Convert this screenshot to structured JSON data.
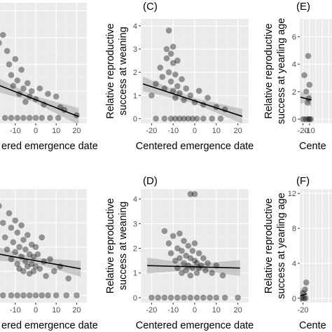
{
  "colors": {
    "panel_background": "#ebebeb",
    "grid_major": "#ffffff",
    "grid_minor": "#f3f3f3",
    "point_fill": "#000000",
    "regression_line": "#000000",
    "confidence_band": "#999999"
  },
  "chart_data": [
    {
      "type": "scatter",
      "panel_label": "",
      "xlabel": "Centered emergence date",
      "ylabel": "",
      "xlim": [
        -25,
        25
      ],
      "ylim": [
        -0.2,
        4.3
      ],
      "x_ticks": [],
      "y_ticks": [],
      "visible_x_tick_labels": [
        "-10",
        "0",
        "10",
        "20"
      ],
      "visible_xlabel_text": "ered emergence date",
      "points": [
        {
          "x": -18,
          "y": 2.8
        },
        {
          "x": -16,
          "y": 3.1
        },
        {
          "x": -14,
          "y": 2.5
        },
        {
          "x": -13,
          "y": 2.0
        },
        {
          "x": -12,
          "y": 1.6
        },
        {
          "x": -11,
          "y": 1.2
        },
        {
          "x": -10,
          "y": 2.2
        },
        {
          "x": -9,
          "y": 1.4
        },
        {
          "x": -8,
          "y": 0.9
        },
        {
          "x": -7,
          "y": 1.8
        },
        {
          "x": -6,
          "y": 1.1
        },
        {
          "x": -5,
          "y": 0.6
        },
        {
          "x": -4,
          "y": 1.3
        },
        {
          "x": -3,
          "y": 0.8
        },
        {
          "x": -2,
          "y": 1.0
        },
        {
          "x": 0,
          "y": 0.7
        },
        {
          "x": 2,
          "y": 1.1
        },
        {
          "x": 4,
          "y": 0.5
        },
        {
          "x": 6,
          "y": 0.9
        },
        {
          "x": 10,
          "y": 0.8
        },
        {
          "x": 12,
          "y": 0.4
        },
        {
          "x": 14,
          "y": 0.3
        },
        {
          "x": 20,
          "y": 0.1
        },
        {
          "x": -15,
          "y": 0
        },
        {
          "x": -12,
          "y": 0
        },
        {
          "x": -9,
          "y": 0
        },
        {
          "x": -6,
          "y": 0
        },
        {
          "x": -3,
          "y": 0
        },
        {
          "x": 0,
          "y": 0
        },
        {
          "x": 3,
          "y": 0
        },
        {
          "x": 7,
          "y": 0
        },
        {
          "x": 11,
          "y": 0
        }
      ],
      "fit": {
        "x": [
          -24,
          21
        ],
        "y": [
          1.4,
          0.05
        ]
      }
    },
    {
      "type": "scatter",
      "panel_label": "(C)",
      "xlabel": "Centered emergence date",
      "ylabel": "Relative reproductive success at weaning",
      "ylabel_lines": [
        "Relative reproductive",
        "success at weaning"
      ],
      "xlim": [
        -25,
        25
      ],
      "ylim": [
        -0.2,
        4.3
      ],
      "x_ticks": [
        -20,
        -10,
        0,
        10,
        20
      ],
      "y_ticks": [
        0,
        1,
        2,
        3,
        4
      ],
      "x_tick_labels": [
        "-20",
        "-10",
        "0",
        "10",
        "20"
      ],
      "y_tick_labels": [
        "0",
        "1",
        "2",
        "3",
        "4"
      ],
      "points": [
        {
          "x": -20,
          "y": 1.0
        },
        {
          "x": -18,
          "y": 1.5
        },
        {
          "x": -16,
          "y": 2.2
        },
        {
          "x": -15,
          "y": 1.8
        },
        {
          "x": -14,
          "y": 1.3
        },
        {
          "x": -13,
          "y": 3.0
        },
        {
          "x": -13,
          "y": 2.6
        },
        {
          "x": -12,
          "y": 3.8
        },
        {
          "x": -12,
          "y": 2.0
        },
        {
          "x": -11,
          "y": 2.8
        },
        {
          "x": -11,
          "y": 1.6
        },
        {
          "x": -10,
          "y": 3.1
        },
        {
          "x": -10,
          "y": 2.4
        },
        {
          "x": -10,
          "y": 1.2
        },
        {
          "x": -9,
          "y": 1.9
        },
        {
          "x": -9,
          "y": 0.9
        },
        {
          "x": -8,
          "y": 2.5
        },
        {
          "x": -8,
          "y": 1.4
        },
        {
          "x": -7,
          "y": 1.1
        },
        {
          "x": -6,
          "y": 1.7
        },
        {
          "x": -5,
          "y": 0.8
        },
        {
          "x": -4,
          "y": 1.3
        },
        {
          "x": -2,
          "y": 1.0
        },
        {
          "x": 0,
          "y": 0.7
        },
        {
          "x": 2,
          "y": 1.2
        },
        {
          "x": 4,
          "y": 0.6
        },
        {
          "x": 6,
          "y": 0.9
        },
        {
          "x": 10,
          "y": 0.5
        },
        {
          "x": 14,
          "y": 0.4
        },
        {
          "x": -18,
          "y": 0
        },
        {
          "x": -14,
          "y": 0
        },
        {
          "x": -11,
          "y": 0
        },
        {
          "x": -9,
          "y": 0
        },
        {
          "x": -7,
          "y": 0
        },
        {
          "x": -5,
          "y": 0
        },
        {
          "x": -3,
          "y": 0
        },
        {
          "x": -1,
          "y": 0
        },
        {
          "x": 1,
          "y": 0
        },
        {
          "x": 4,
          "y": 0
        },
        {
          "x": 8,
          "y": 0
        },
        {
          "x": 12,
          "y": 0
        }
      ],
      "fit": {
        "x": [
          -24,
          22
        ],
        "y": [
          1.5,
          0.1
        ]
      }
    },
    {
      "type": "scatter",
      "panel_label": "(E)",
      "xlabel": "Centered emergence date",
      "ylabel": "Relative reproductive success at yearling age",
      "ylabel_lines": [
        "Relative reproductive",
        "success at yearling age"
      ],
      "xlim": [
        -25,
        25
      ],
      "ylim": [
        -0.3,
        7.3
      ],
      "x_ticks": [
        -20,
        -10
      ],
      "y_ticks": [
        0,
        2,
        4,
        6
      ],
      "x_tick_labels": [
        "-20",
        "-10"
      ],
      "y_tick_labels": [
        "0",
        "2",
        "4",
        "6"
      ],
      "visible_xlabel_text": "Cente",
      "points": [
        {
          "x": -18,
          "y": 3.2
        },
        {
          "x": -15,
          "y": 2.0
        },
        {
          "x": -13,
          "y": 1.2
        },
        {
          "x": -12,
          "y": 4.6
        },
        {
          "x": -11,
          "y": 1.5
        },
        {
          "x": -10,
          "y": 2.5
        },
        {
          "x": -20,
          "y": 0
        },
        {
          "x": -16,
          "y": 0
        },
        {
          "x": -12,
          "y": 0
        },
        {
          "x": -10,
          "y": 0
        },
        {
          "x": -8,
          "y": 0
        }
      ],
      "fit": {
        "x": [
          -24,
          -7
        ],
        "y": [
          1.6,
          1.4
        ]
      }
    },
    {
      "type": "scatter",
      "panel_label": "",
      "xlabel": "Centered emergence date",
      "ylabel": "",
      "xlim": [
        -25,
        25
      ],
      "ylim": [
        -0.3,
        4.4
      ],
      "x_ticks": [],
      "y_ticks": [],
      "visible_x_tick_labels": [
        "-10",
        "0",
        "10",
        "20"
      ],
      "visible_xlabel_text": "ered emergence date",
      "points": [
        {
          "x": -18,
          "y": 3.7
        },
        {
          "x": -16,
          "y": 3.0
        },
        {
          "x": -15,
          "y": 2.4
        },
        {
          "x": -14,
          "y": 1.9
        },
        {
          "x": -13,
          "y": 3.4
        },
        {
          "x": -12,
          "y": 2.8
        },
        {
          "x": -12,
          "y": 1.5
        },
        {
          "x": -11,
          "y": 2.2
        },
        {
          "x": -10,
          "y": 3.1
        },
        {
          "x": -10,
          "y": 1.8
        },
        {
          "x": -9,
          "y": 2.6
        },
        {
          "x": -9,
          "y": 1.3
        },
        {
          "x": -8,
          "y": 2.0
        },
        {
          "x": -8,
          "y": 1.1
        },
        {
          "x": -7,
          "y": 2.9
        },
        {
          "x": -7,
          "y": 1.6
        },
        {
          "x": -6,
          "y": 2.3
        },
        {
          "x": -6,
          "y": 1.0
        },
        {
          "x": -5,
          "y": 1.9
        },
        {
          "x": -5,
          "y": 1.4
        },
        {
          "x": -4,
          "y": 2.5
        },
        {
          "x": -4,
          "y": 1.2
        },
        {
          "x": -3,
          "y": 1.7
        },
        {
          "x": -3,
          "y": 0.9
        },
        {
          "x": -2,
          "y": 2.1
        },
        {
          "x": -2,
          "y": 1.3
        },
        {
          "x": -1,
          "y": 1.6
        },
        {
          "x": -1,
          "y": 1.0
        },
        {
          "x": 0,
          "y": 2.0
        },
        {
          "x": 0,
          "y": 1.2
        },
        {
          "x": 1,
          "y": 1.7
        },
        {
          "x": 2,
          "y": 1.1
        },
        {
          "x": 3,
          "y": 2.4
        },
        {
          "x": 4,
          "y": 1.4
        },
        {
          "x": 5,
          "y": 0.8
        },
        {
          "x": 7,
          "y": 1.5
        },
        {
          "x": 9,
          "y": 1.0
        },
        {
          "x": 12,
          "y": 1.2
        },
        {
          "x": 16,
          "y": 0.7
        },
        {
          "x": -20,
          "y": 0
        },
        {
          "x": -16,
          "y": 0
        },
        {
          "x": -12,
          "y": 0
        },
        {
          "x": -9,
          "y": 0
        },
        {
          "x": -6,
          "y": 0
        },
        {
          "x": -3,
          "y": 0
        },
        {
          "x": 0,
          "y": 0
        },
        {
          "x": 3,
          "y": 0
        },
        {
          "x": 6,
          "y": 0
        },
        {
          "x": 10,
          "y": 0
        },
        {
          "x": 15,
          "y": 0
        },
        {
          "x": 20,
          "y": 0
        }
      ],
      "fit": {
        "x": [
          -24,
          22
        ],
        "y": [
          1.8,
          1.1
        ]
      }
    },
    {
      "type": "scatter",
      "panel_label": "(D)",
      "xlabel": "Centered emergence date",
      "ylabel": "Relative reproductive success at weaning",
      "ylabel_lines": [
        "Relative reproductive",
        "success at weaning"
      ],
      "xlim": [
        -25,
        25
      ],
      "ylim": [
        -0.2,
        4.4
      ],
      "x_ticks": [
        -20,
        -10,
        0,
        10,
        20
      ],
      "y_ticks": [
        0,
        1,
        2,
        3,
        4
      ],
      "x_tick_labels": [
        "-20",
        "-10",
        "0",
        "10",
        "20"
      ],
      "y_tick_labels": [
        "0",
        "1",
        "2",
        "3",
        "4"
      ],
      "points": [
        {
          "x": -2,
          "y": 4.2
        },
        {
          "x": 0,
          "y": 4.2
        },
        {
          "x": -14,
          "y": 2.7
        },
        {
          "x": -12,
          "y": 2.2
        },
        {
          "x": -11,
          "y": 1.8
        },
        {
          "x": -10,
          "y": 2.5
        },
        {
          "x": -9,
          "y": 1.5
        },
        {
          "x": -8,
          "y": 2.0
        },
        {
          "x": -8,
          "y": 1.2
        },
        {
          "x": -7,
          "y": 2.6
        },
        {
          "x": -7,
          "y": 1.6
        },
        {
          "x": -6,
          "y": 1.9
        },
        {
          "x": -6,
          "y": 1.0
        },
        {
          "x": -5,
          "y": 2.3
        },
        {
          "x": -5,
          "y": 1.4
        },
        {
          "x": -4,
          "y": 1.7
        },
        {
          "x": -4,
          "y": 1.1
        },
        {
          "x": -3,
          "y": 2.1
        },
        {
          "x": -3,
          "y": 1.3
        },
        {
          "x": -2,
          "y": 1.6
        },
        {
          "x": -2,
          "y": 0.9
        },
        {
          "x": -1,
          "y": 1.9
        },
        {
          "x": -1,
          "y": 1.2
        },
        {
          "x": 0,
          "y": 1.5
        },
        {
          "x": 0,
          "y": 2.2
        },
        {
          "x": 1,
          "y": 1.4
        },
        {
          "x": 1,
          "y": 1.0
        },
        {
          "x": 2,
          "y": 1.8
        },
        {
          "x": 2,
          "y": 1.2
        },
        {
          "x": 3,
          "y": 1.3
        },
        {
          "x": 4,
          "y": 1.6
        },
        {
          "x": 5,
          "y": 1.1
        },
        {
          "x": 6,
          "y": 1.4
        },
        {
          "x": 8,
          "y": 1.0
        },
        {
          "x": 10,
          "y": 1.3
        },
        {
          "x": 13,
          "y": 0.9
        },
        {
          "x": -20,
          "y": 0
        },
        {
          "x": -17,
          "y": 0
        },
        {
          "x": -14,
          "y": 0
        },
        {
          "x": -11,
          "y": 0
        },
        {
          "x": -8,
          "y": 0
        },
        {
          "x": -5,
          "y": 0
        },
        {
          "x": -2,
          "y": 0
        },
        {
          "x": 1,
          "y": 0
        },
        {
          "x": 4,
          "y": 0
        },
        {
          "x": 7,
          "y": 0
        },
        {
          "x": 10,
          "y": 0
        },
        {
          "x": 14,
          "y": 0
        },
        {
          "x": 20,
          "y": 0
        }
      ],
      "fit": {
        "x": [
          -22,
          21
        ],
        "y": [
          1.3,
          1.2
        ]
      }
    },
    {
      "type": "scatter",
      "panel_label": "(F)",
      "xlabel": "Centered emergence date",
      "ylabel": "Relative reproductive success at yearling age",
      "ylabel_lines": [
        "Relative reproductive",
        "success at yearling age"
      ],
      "xlim": [
        -25,
        25
      ],
      "ylim": [
        -0.5,
        12.5
      ],
      "x_ticks": [
        -20
      ],
      "y_ticks": [
        0,
        4,
        8,
        12
      ],
      "x_tick_labels": [
        "-20"
      ],
      "y_tick_labels": [
        "0",
        "4",
        "8",
        "12"
      ],
      "visible_xlabel_text": "Cente",
      "points": [
        {
          "x": -20,
          "y": 0.6
        },
        {
          "x": -17,
          "y": 1.0
        },
        {
          "x": -15,
          "y": 1.8
        },
        {
          "x": -22,
          "y": 0
        },
        {
          "x": -19,
          "y": 0
        },
        {
          "x": -16,
          "y": 0
        }
      ],
      "fit": {
        "x": [
          -24,
          -14
        ],
        "y": [
          0.3,
          0.5
        ]
      }
    }
  ]
}
